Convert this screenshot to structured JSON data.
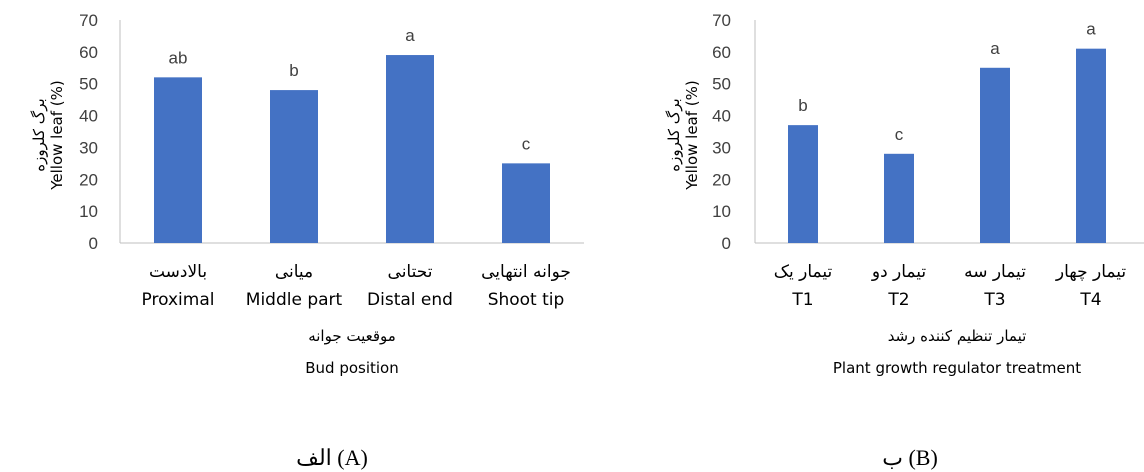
{
  "chart_data": [
    {
      "type": "bar",
      "categories_fa": [
        "بالادست",
        "میانی",
        "تحتانی",
        "جوانه انتهایی"
      ],
      "categories": [
        "Proximal",
        "Middle part",
        "Distal end",
        "Shoot tip"
      ],
      "values": [
        52,
        48,
        59,
        25
      ],
      "value_labels": [
        "ab",
        "b",
        "a",
        "c"
      ],
      "ylabel_fa": "برگ کلروزه",
      "ylabel": "Yellow leaf (%)",
      "xlabel_fa": "موقعیت جوانه",
      "xlabel": "Bud position",
      "ylim": [
        0,
        70
      ],
      "yticks": [
        "0",
        "10",
        "20",
        "30",
        "40",
        "50",
        "60",
        "70"
      ],
      "caption": "الف (A)",
      "bar_color": "#4472C4",
      "grid": false
    },
    {
      "type": "bar",
      "categories_fa": [
        "تیمار یک",
        "تیمار دو",
        "تیمار سه",
        "تیمار چهار"
      ],
      "categories": [
        "T1",
        "T2",
        "T3",
        "T4"
      ],
      "values": [
        37,
        28,
        55,
        61
      ],
      "value_labels": [
        "b",
        "c",
        "a",
        "a"
      ],
      "ylabel_fa": "برگ کلروزه",
      "ylabel": "Yellow leaf (%)",
      "xlabel_fa": "تیمار تنظیم کننده رشد",
      "xlabel": "Plant growth regulator treatment",
      "ylim": [
        0,
        70
      ],
      "yticks": [
        "0",
        "10",
        "20",
        "30",
        "40",
        "50",
        "60",
        "70"
      ],
      "caption": "ب (B)",
      "bar_color": "#4472C4",
      "grid": false
    }
  ]
}
